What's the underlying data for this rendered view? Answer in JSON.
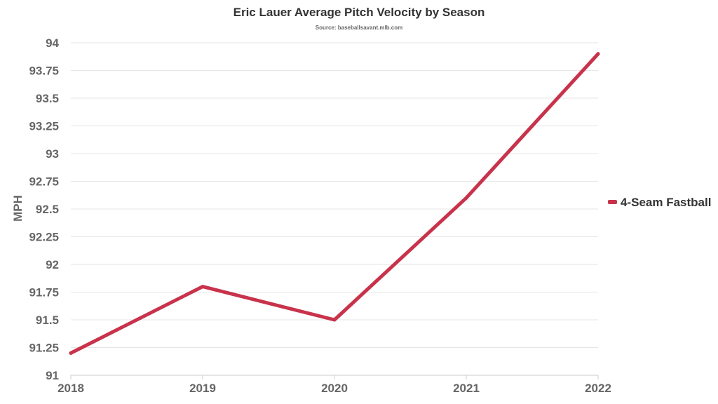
{
  "chart_data": {
    "type": "line",
    "title": "Eric Lauer Average Pitch Velocity by Season",
    "subtitle": "Source: baseballsavant.mlb.com",
    "xlabel": "",
    "ylabel": "MPH",
    "categories": [
      "2018",
      "2019",
      "2020",
      "2021",
      "2022"
    ],
    "series": [
      {
        "name": "4-Seam Fastball",
        "color": "#c8334b",
        "values": [
          91.2,
          91.8,
          91.5,
          92.6,
          93.9
        ]
      }
    ],
    "ylim": [
      91,
      94
    ],
    "yticks": [
      "91",
      "91.25",
      "91.5",
      "91.75",
      "92",
      "92.25",
      "92.5",
      "92.75",
      "93",
      "93.25",
      "93.5",
      "93.75",
      "94"
    ],
    "grid": true,
    "legend_position": "right"
  }
}
